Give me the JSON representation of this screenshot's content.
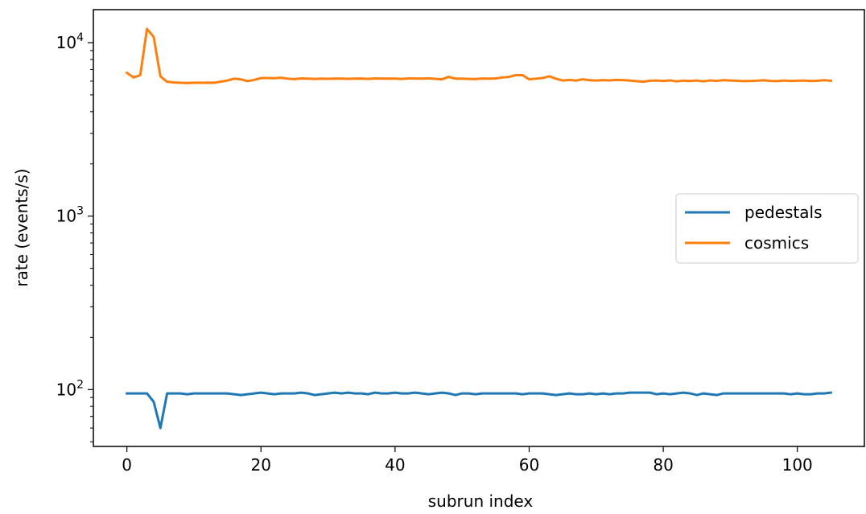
{
  "chart_data": {
    "type": "line",
    "title": "",
    "xlabel": "subrun index",
    "ylabel": "rate (events/s)",
    "yscale": "log",
    "xlim": [
      -5,
      110
    ],
    "ylim": [
      47,
      15500
    ],
    "xticks": [
      {
        "value": 0,
        "label": "0"
      },
      {
        "value": 20,
        "label": "20"
      },
      {
        "value": 40,
        "label": "40"
      },
      {
        "value": 60,
        "label": "60"
      },
      {
        "value": 80,
        "label": "80"
      },
      {
        "value": 100,
        "label": "100"
      }
    ],
    "yticks": [
      {
        "value": 100,
        "base": "10",
        "exp": "2"
      },
      {
        "value": 1000,
        "base": "10",
        "exp": "3"
      },
      {
        "value": 10000,
        "base": "10",
        "exp": "4"
      }
    ],
    "grid": false,
    "legend_position": "center-right",
    "series": [
      {
        "name": "pedestals",
        "color": "#1f77b4",
        "values": [
          95,
          95,
          95,
          95,
          85,
          60,
          95,
          95,
          95,
          94,
          95,
          95,
          95,
          95,
          95,
          95,
          94,
          93,
          94,
          95,
          96,
          95,
          94,
          95,
          95,
          95,
          96,
          95,
          93,
          94,
          95,
          96,
          95,
          96,
          95,
          95,
          94,
          96,
          95,
          95,
          96,
          95,
          95,
          96,
          95,
          94,
          95,
          96,
          95,
          93,
          95,
          95,
          94,
          95,
          95,
          95,
          95,
          95,
          95,
          94,
          95,
          95,
          95,
          94,
          93,
          94,
          95,
          94,
          94,
          95,
          94,
          95,
          94,
          95,
          95,
          96,
          96,
          96,
          96,
          94,
          95,
          94,
          95,
          96,
          95,
          93,
          95,
          94,
          93,
          95,
          95,
          95,
          95,
          95,
          95,
          95,
          95,
          95,
          95,
          94,
          95,
          94,
          94,
          95,
          95,
          96
        ]
      },
      {
        "name": "cosmics",
        "color": "#ff7f0e",
        "values": [
          6700,
          6300,
          6500,
          12000,
          10800,
          6400,
          5950,
          5900,
          5870,
          5850,
          5870,
          5870,
          5880,
          5870,
          5960,
          6050,
          6200,
          6150,
          6000,
          6100,
          6250,
          6250,
          6240,
          6280,
          6200,
          6160,
          6220,
          6200,
          6180,
          6200,
          6190,
          6210,
          6200,
          6190,
          6200,
          6210,
          6180,
          6220,
          6200,
          6210,
          6200,
          6180,
          6220,
          6210,
          6200,
          6230,
          6190,
          6150,
          6350,
          6200,
          6200,
          6180,
          6170,
          6210,
          6200,
          6220,
          6300,
          6350,
          6500,
          6500,
          6150,
          6200,
          6250,
          6400,
          6200,
          6050,
          6100,
          6050,
          6150,
          6070,
          6050,
          6080,
          6060,
          6100,
          6080,
          6050,
          6000,
          5950,
          6030,
          6050,
          6020,
          6060,
          5980,
          6040,
          6010,
          6050,
          5980,
          6060,
          6020,
          6080,
          6050,
          6030,
          6000,
          6020,
          6030,
          6070,
          6020,
          6000,
          6050,
          6020,
          6030,
          6050,
          6010,
          6030,
          6070,
          6030
        ]
      }
    ]
  }
}
